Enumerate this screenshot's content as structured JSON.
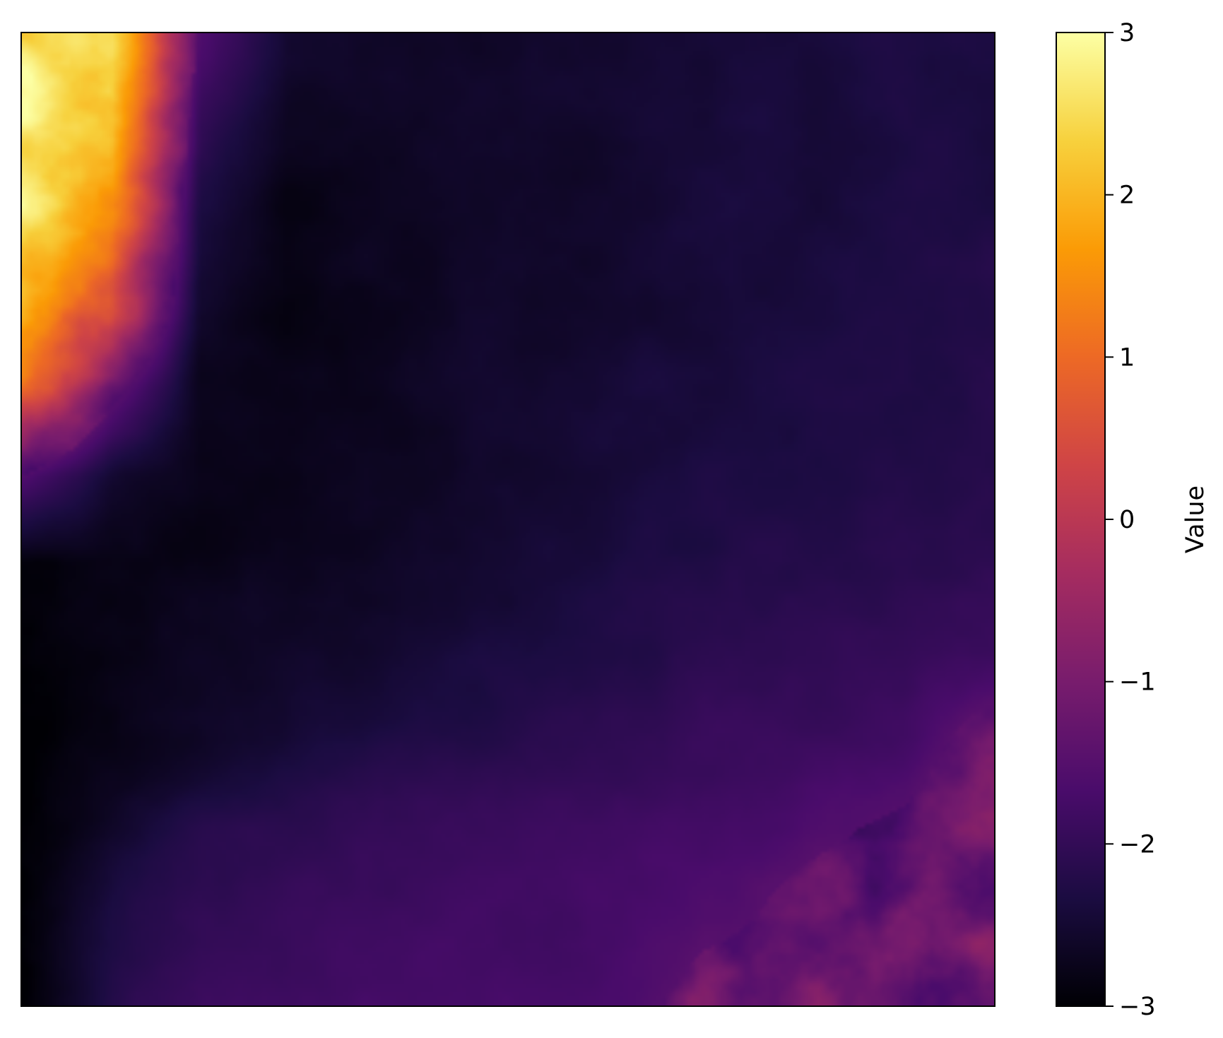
{
  "chart_data": {
    "type": "heatmap",
    "title": "",
    "xlabel": "",
    "ylabel": "",
    "x_ticks": [],
    "y_ticks": [],
    "colormap": "inferno",
    "value_range": [
      -3,
      3
    ],
    "colorbar": {
      "label": "Value",
      "placement": "right",
      "ticks": [
        {
          "value": 3,
          "label": "3"
        },
        {
          "value": 2,
          "label": "2"
        },
        {
          "value": 1,
          "label": "1"
        },
        {
          "value": 0,
          "label": "0"
        },
        {
          "value": -1,
          "label": "−1"
        },
        {
          "value": -2,
          "label": "−2"
        },
        {
          "value": -3,
          "label": "−3"
        }
      ],
      "colors": [
        "#000004",
        "#1b0c41",
        "#4a0c6b",
        "#781c6d",
        "#a52c60",
        "#cf4446",
        "#ed6925",
        "#fb9b06",
        "#f7d13d",
        "#fcffa4"
      ]
    },
    "field_description_rows": [
      [
        3.0,
        2.4,
        -1.6,
        -2.5,
        -2.6,
        -2.6,
        -2.5,
        -2.5,
        -2.4,
        -2.4,
        -2.3,
        -2.3
      ],
      [
        3.0,
        2.2,
        -2.0,
        -2.7,
        -2.7,
        -2.6,
        -2.6,
        -2.5,
        -2.4,
        -2.4,
        -2.3,
        -2.3
      ],
      [
        2.8,
        1.6,
        -2.3,
        -2.8,
        -2.7,
        -2.6,
        -2.6,
        -2.5,
        -2.4,
        -2.4,
        -2.3,
        -2.3
      ],
      [
        2.2,
        0.8,
        -2.5,
        -2.8,
        -2.7,
        -2.6,
        -2.6,
        -2.5,
        -2.4,
        -2.4,
        -2.3,
        -2.2
      ],
      [
        1.0,
        -1.2,
        -2.7,
        -2.8,
        -2.7,
        -2.6,
        -2.5,
        -2.4,
        -2.4,
        -2.3,
        -2.3,
        -2.2
      ],
      [
        -1.5,
        -2.5,
        -2.8,
        -2.8,
        -2.7,
        -2.6,
        -2.5,
        -2.4,
        -2.3,
        -2.3,
        -2.2,
        -2.2
      ],
      [
        -2.9,
        -2.8,
        -2.8,
        -2.7,
        -2.6,
        -2.5,
        -2.4,
        -2.3,
        -2.2,
        -2.2,
        -2.1,
        -2.1
      ],
      [
        -2.9,
        -2.8,
        -2.7,
        -2.6,
        -2.5,
        -2.4,
        -2.3,
        -2.2,
        -2.1,
        -2.0,
        -2.0,
        -1.9
      ],
      [
        -3.0,
        -2.8,
        -2.6,
        -2.5,
        -2.3,
        -2.2,
        -2.1,
        -2.0,
        -1.9,
        -1.9,
        -1.8,
        -1.2
      ],
      [
        -3.0,
        -2.6,
        -2.2,
        -2.1,
        -2.0,
        -1.9,
        -1.8,
        -1.8,
        -1.7,
        -1.6,
        -1.4,
        -0.9
      ],
      [
        -3.0,
        -2.3,
        -2.0,
        -1.9,
        -1.9,
        -1.8,
        -1.8,
        -1.7,
        -1.6,
        -1.3,
        -1.2,
        -1.2
      ],
      [
        -3.0,
        -2.2,
        -1.8,
        -1.8,
        -1.7,
        -1.7,
        -1.7,
        -1.6,
        -1.2,
        -1.0,
        -1.2,
        -1.3
      ]
    ]
  }
}
